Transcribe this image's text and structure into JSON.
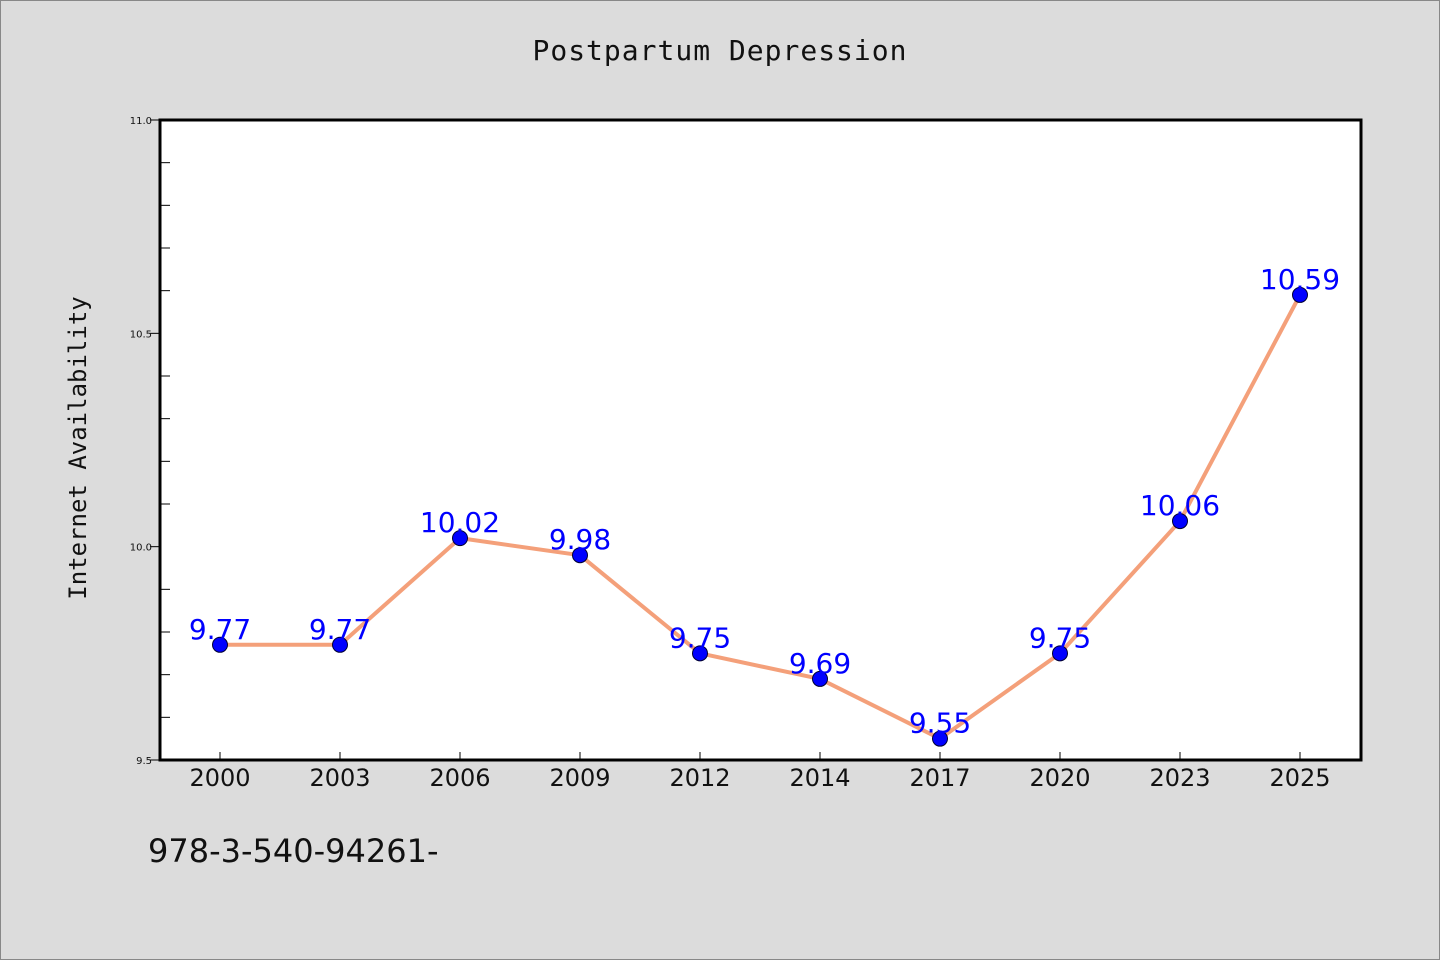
{
  "chart_data": {
    "type": "line",
    "title": "Postpartum Depression",
    "xlabel": "",
    "ylabel": "Internet Availability",
    "categories": [
      "2000",
      "2003",
      "2006",
      "2009",
      "2012",
      "2014",
      "2017",
      "2020",
      "2023",
      "2025"
    ],
    "series": [
      {
        "values": [
          9.77,
          9.77,
          10.02,
          9.98,
          9.75,
          9.69,
          9.55,
          9.75,
          10.06,
          10.59
        ],
        "labels": [
          "9.77",
          "9.77",
          "10.02",
          "9.98",
          "9.75",
          "9.69",
          "9.55",
          "9.75",
          "10.06",
          "10.59"
        ]
      }
    ],
    "ylim": [
      9.5,
      11.0
    ],
    "yticks": [
      "9.5",
      "10.0",
      "10.5",
      "11.0"
    ],
    "grid": false,
    "colors": {
      "line": "#f4a07a",
      "marker": "#0000ff",
      "data_label": "#0000ff",
      "background": "#dcdcdc",
      "plot_background": "#ffffff"
    }
  },
  "footer": {
    "code": "978-3-540-94261-"
  }
}
